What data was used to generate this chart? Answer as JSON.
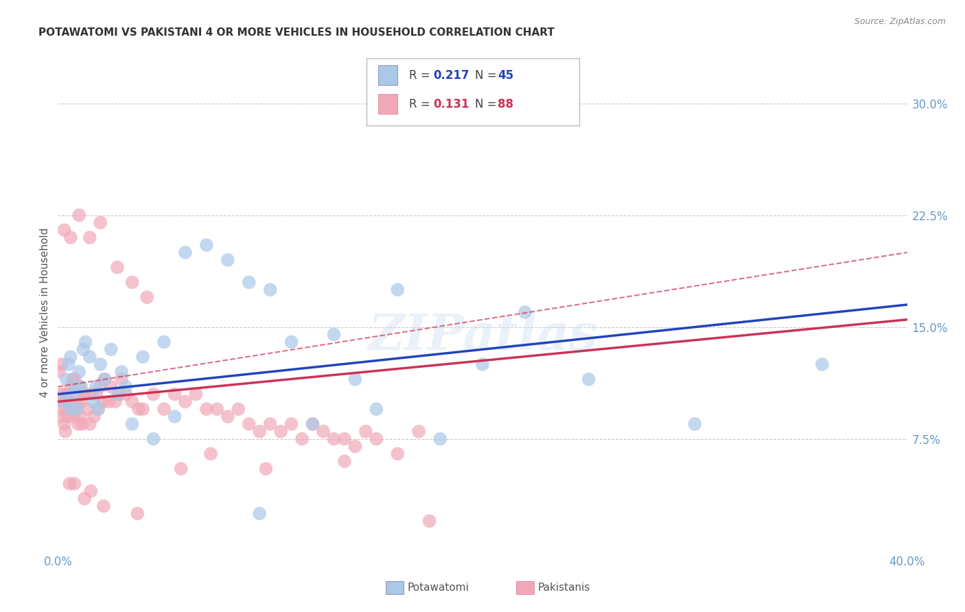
{
  "title": "POTAWATOMI VS PAKISTANI 4 OR MORE VEHICLES IN HOUSEHOLD CORRELATION CHART",
  "source": "Source: ZipAtlas.com",
  "ylabel": "4 or more Vehicles in Household",
  "xlim": [
    0.0,
    40.0
  ],
  "ylim": [
    0.0,
    32.0
  ],
  "x_tick_labels": [
    "0.0%",
    "40.0%"
  ],
  "y_ticks_right": [
    7.5,
    15.0,
    22.5,
    30.0
  ],
  "y_tick_labels_right": [
    "7.5%",
    "15.0%",
    "22.5%",
    "30.0%"
  ],
  "grid_color": "#c8c8c8",
  "background_color": "#ffffff",
  "watermark": "ZIPatlas",
  "blue_color": "#aac8e8",
  "pink_color": "#f0a8b8",
  "blue_line_color": "#2244bb",
  "pink_line_color": "#cc3355",
  "axis_tick_color": "#6699cc",
  "title_color": "#333333",
  "source_color": "#888888",
  "ylabel_color": "#555555",
  "legend_R1": "R = ",
  "legend_V1": "0.217",
  "legend_N1_label": "N = ",
  "legend_N1_val": "45",
  "legend_R2": "R = ",
  "legend_V2": "0.131",
  "legend_N2_label": "N = ",
  "legend_N2_val": "88",
  "potawatomi_x": [
    0.4,
    0.5,
    0.6,
    0.7,
    0.8,
    0.9,
    1.0,
    1.1,
    1.2,
    1.3,
    1.5,
    1.7,
    1.9,
    2.0,
    2.2,
    2.5,
    2.8,
    3.0,
    3.2,
    3.5,
    4.0,
    4.5,
    5.0,
    5.5,
    6.0,
    7.0,
    8.0,
    9.0,
    10.0,
    11.0,
    12.0,
    13.0,
    14.0,
    15.0,
    16.0,
    18.0,
    20.0,
    22.0,
    25.0,
    30.0,
    36.0,
    0.3,
    0.6,
    1.8,
    9.5
  ],
  "potawatomi_y": [
    11.5,
    12.5,
    13.0,
    10.5,
    11.0,
    9.5,
    12.0,
    11.0,
    13.5,
    14.0,
    13.0,
    10.0,
    9.5,
    12.5,
    11.5,
    13.5,
    10.5,
    12.0,
    11.0,
    8.5,
    13.0,
    7.5,
    14.0,
    9.0,
    20.0,
    20.5,
    19.5,
    18.0,
    17.5,
    14.0,
    8.5,
    14.5,
    11.5,
    9.5,
    17.5,
    7.5,
    12.5,
    16.0,
    11.5,
    8.5,
    12.5,
    10.0,
    9.5,
    11.0,
    2.5
  ],
  "pakistani_x": [
    0.1,
    0.15,
    0.2,
    0.25,
    0.3,
    0.35,
    0.4,
    0.45,
    0.5,
    0.55,
    0.6,
    0.65,
    0.7,
    0.75,
    0.8,
    0.85,
    0.9,
    0.95,
    1.0,
    1.05,
    1.1,
    1.15,
    1.2,
    1.3,
    1.4,
    1.5,
    1.6,
    1.7,
    1.8,
    1.9,
    2.0,
    2.1,
    2.2,
    2.4,
    2.5,
    2.7,
    2.9,
    3.0,
    3.2,
    3.5,
    3.8,
    4.0,
    4.5,
    5.0,
    5.5,
    6.0,
    6.5,
    7.0,
    7.5,
    8.0,
    8.5,
    9.0,
    9.5,
    10.0,
    10.5,
    11.0,
    11.5,
    12.0,
    12.5,
    13.0,
    13.5,
    14.0,
    14.5,
    15.0,
    16.0,
    17.0,
    0.3,
    0.6,
    1.0,
    1.5,
    2.0,
    2.8,
    3.5,
    4.2,
    5.8,
    7.2,
    9.8,
    13.5,
    17.5,
    0.05,
    0.18,
    0.32,
    0.55,
    0.78,
    1.25,
    1.55,
    2.15,
    3.75
  ],
  "pakistani_y": [
    10.5,
    9.0,
    9.5,
    10.0,
    8.5,
    8.0,
    9.5,
    9.0,
    10.5,
    10.0,
    11.0,
    9.5,
    11.5,
    9.0,
    11.5,
    9.5,
    10.0,
    8.5,
    11.0,
    9.0,
    10.0,
    8.5,
    10.5,
    10.5,
    9.5,
    8.5,
    10.5,
    9.0,
    10.5,
    9.5,
    11.0,
    10.0,
    11.5,
    10.0,
    11.0,
    10.0,
    10.5,
    11.5,
    10.5,
    10.0,
    9.5,
    9.5,
    10.5,
    9.5,
    10.5,
    10.0,
    10.5,
    9.5,
    9.5,
    9.0,
    9.5,
    8.5,
    8.0,
    8.5,
    8.0,
    8.5,
    7.5,
    8.5,
    8.0,
    7.5,
    7.5,
    7.0,
    8.0,
    7.5,
    6.5,
    8.0,
    21.5,
    21.0,
    22.5,
    21.0,
    22.0,
    19.0,
    18.0,
    17.0,
    5.5,
    6.5,
    5.5,
    6.0,
    2.0,
    12.0,
    12.5,
    10.5,
    4.5,
    4.5,
    3.5,
    4.0,
    3.0,
    2.5
  ],
  "blue_reg_start_y": 10.5,
  "blue_reg_end_y": 16.5,
  "pink_solid_start_y": 10.0,
  "pink_solid_end_y": 15.5,
  "pink_dashed_start_y": 11.0,
  "pink_dashed_end_y": 20.0
}
